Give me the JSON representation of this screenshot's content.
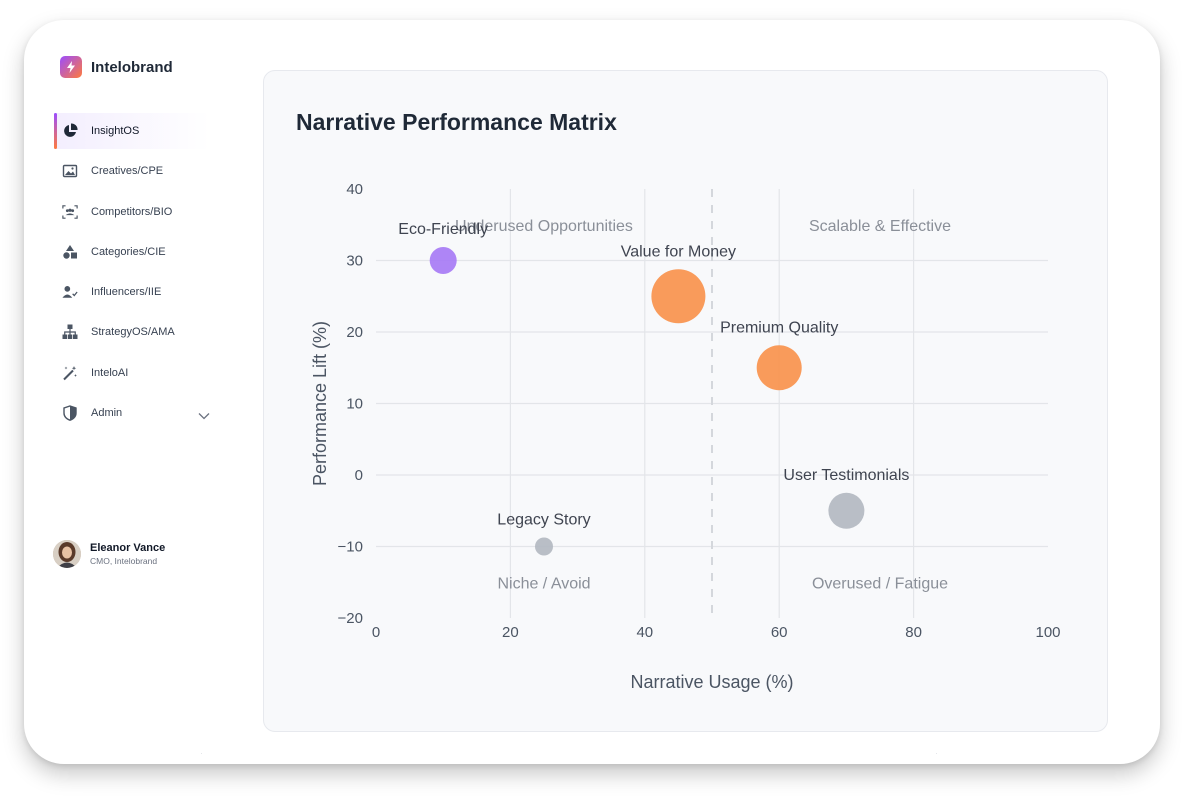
{
  "app": {
    "name": "Intelobrand"
  },
  "sidebar": {
    "items": [
      {
        "label": "InsightOS",
        "icon": "pie-chart-icon",
        "active": true
      },
      {
        "label": "Creatives/CPE",
        "icon": "image-icon",
        "active": false
      },
      {
        "label": "Competitors/BIO",
        "icon": "users-scan-icon",
        "active": false
      },
      {
        "label": "Categories/CIE",
        "icon": "shapes-icon",
        "active": false
      },
      {
        "label": "Influencers/IIE",
        "icon": "user-check-icon",
        "active": false
      },
      {
        "label": "StrategyOS/AMA",
        "icon": "hierarchy-icon",
        "active": false
      },
      {
        "label": "InteloAI",
        "icon": "magic-wand-icon",
        "active": false
      },
      {
        "label": "Admin",
        "icon": "shield-icon",
        "active": false,
        "expandable": true
      }
    ]
  },
  "user": {
    "name": "Eleanor Vance",
    "role": "CMO, Intelobrand"
  },
  "card": {
    "title": "Narrative Performance Matrix"
  },
  "chart_data": {
    "type": "scatter",
    "title": "Narrative Performance Matrix",
    "xlabel": "Narrative Usage (%)",
    "ylabel": "Performance Lift (%)",
    "xlim": [
      0,
      100
    ],
    "ylim": [
      -20,
      40
    ],
    "xticks": [
      0,
      20,
      40,
      60,
      80,
      100
    ],
    "yticks": [
      40,
      30,
      20,
      10,
      0,
      -10,
      -20
    ],
    "ytick_labels": [
      "40",
      "30",
      "20",
      "10",
      "0",
      "−10",
      "−20"
    ],
    "grid": true,
    "divider_x": 50,
    "quadrants": [
      {
        "label": "Underused Opportunities",
        "x": 25,
        "y": 35
      },
      {
        "label": "Scalable & Effective",
        "x": 75,
        "y": 35
      },
      {
        "label": "Niche / Avoid",
        "x": 25,
        "y": -15
      },
      {
        "label": "Overused / Fatigue",
        "x": 75,
        "y": -15
      }
    ],
    "points": [
      {
        "name": "Eco-Friendly",
        "x": 10,
        "y": 30,
        "size": 2,
        "color": "#a77bf5"
      },
      {
        "name": "Value for Money",
        "x": 45,
        "y": 25,
        "size": 5,
        "color": "#f9924d"
      },
      {
        "name": "Premium Quality",
        "x": 60,
        "y": 15,
        "size": 4,
        "color": "#f9924d"
      },
      {
        "name": "User Testimonials",
        "x": 70,
        "y": -5,
        "size": 3,
        "color": "#b3b8c1"
      },
      {
        "name": "Legacy Story",
        "x": 25,
        "y": -10,
        "size": 1,
        "color": "#b3b8c1"
      }
    ]
  }
}
